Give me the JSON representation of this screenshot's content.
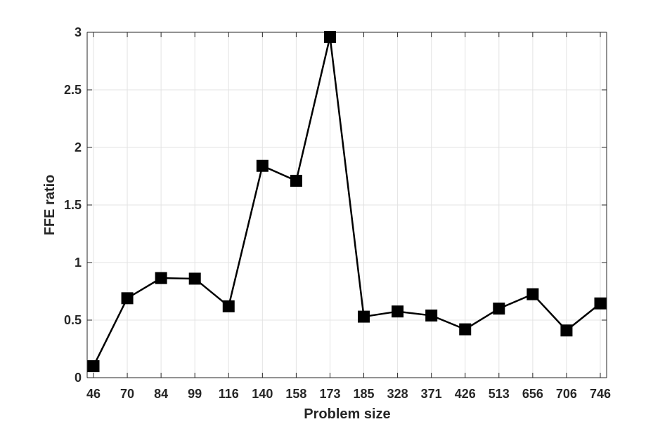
{
  "chart_data": {
    "type": "line",
    "title": "",
    "xlabel": "Problem size",
    "ylabel": "FFE ratio",
    "categories": [
      "46",
      "70",
      "84",
      "99",
      "116",
      "140",
      "158",
      "173",
      "185",
      "328",
      "371",
      "426",
      "513",
      "656",
      "706",
      "746"
    ],
    "series": [
      {
        "values": [
          0.1,
          0.69,
          0.865,
          0.86,
          0.62,
          1.84,
          1.71,
          2.96,
          0.53,
          0.575,
          0.54,
          0.42,
          0.6,
          0.725,
          0.41,
          0.645
        ],
        "color": "#000000",
        "marker": "square"
      }
    ],
    "ylim": [
      0,
      3
    ],
    "yticks": [
      0,
      0.5,
      1,
      1.5,
      2,
      2.5,
      3
    ],
    "ytick_labels": [
      "0",
      "0.5",
      "1",
      "1.5",
      "2",
      "2.5",
      "3"
    ],
    "grid": true,
    "box": true
  }
}
